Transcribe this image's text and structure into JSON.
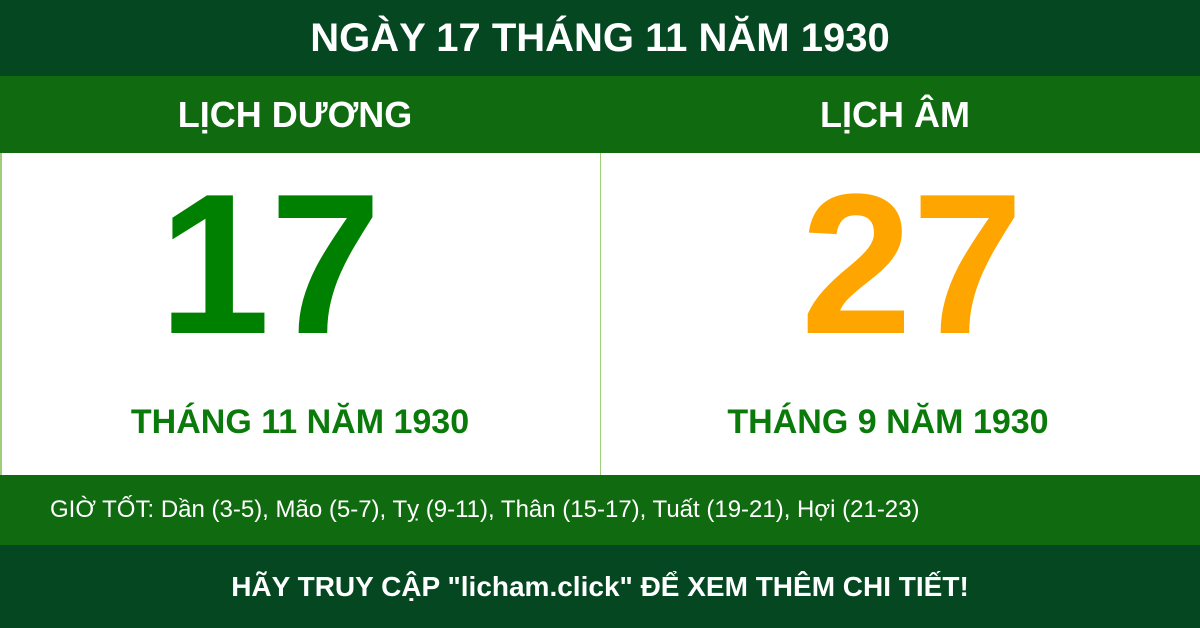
{
  "title": "NGÀY 17 THÁNG 11 NĂM 1930",
  "solar": {
    "heading": "LỊCH DƯƠNG",
    "day": "17",
    "month_year": "THÁNG 11 NĂM 1930",
    "color": "#008000"
  },
  "lunar": {
    "heading": "LỊCH ÂM",
    "day": "27",
    "month_year": "THÁNG 9 NĂM 1930",
    "color": "#ffa500"
  },
  "good_hours": "GIỜ TỐT: Dần (3-5), Mão (5-7), Tỵ (9-11), Thân (15-17), Tuất (19-21), Hợi (21-23)",
  "footer": "HÃY TRUY CẬP \"licham.click\" ĐỂ XEM THÊM CHI TIẾT!",
  "colors": {
    "dark_green": "#044721",
    "green": "#106b10"
  }
}
